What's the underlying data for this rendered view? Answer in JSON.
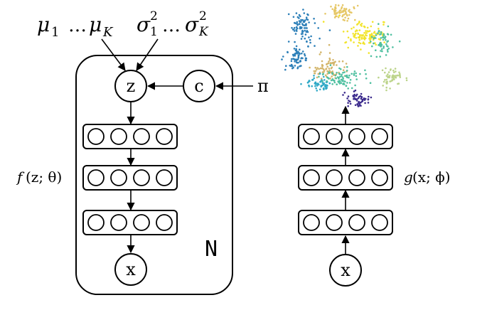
{
  "top_labels": {
    "mu": {
      "sym": "μ",
      "sub1": "1",
      "dots": "…",
      "subK": "K"
    },
    "sigma": {
      "sym": "σ",
      "sup": "2",
      "sub1": "1",
      "dots": "…",
      "subK": "K"
    }
  },
  "nodes": {
    "z": "z",
    "c": "c",
    "x_left": "x",
    "x_right": "x"
  },
  "pi_label": "π",
  "plate_label": "N",
  "decoder_label": {
    "func": "f",
    "args": "(z; θ)"
  },
  "encoder_label": {
    "func": "g",
    "args": "(x; ϕ)"
  },
  "scatter_colors": [
    "#2c7fb8",
    "#3b52a3",
    "#e6c766",
    "#f2e42a",
    "#4fc0a0",
    "#2fa9c7",
    "#8fcf6e",
    "#bcd48a",
    "#d3b56a",
    "#3b2a8c"
  ]
}
